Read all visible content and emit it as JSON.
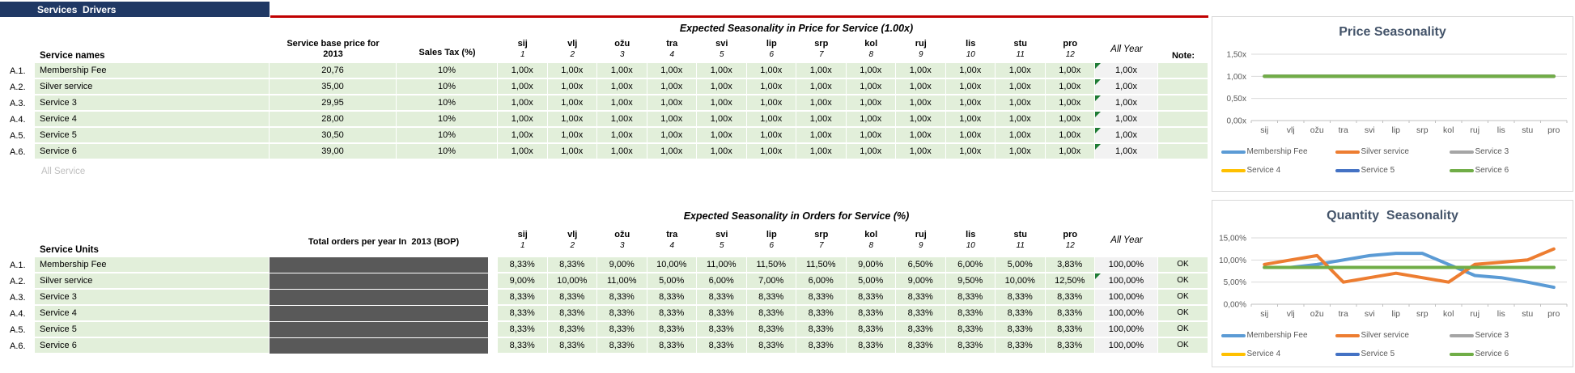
{
  "header": {
    "title": "Services  Drivers"
  },
  "price_table": {
    "title": "Expected Seasonality in Price for Service (1.00x)",
    "name_header": "Service names",
    "base_price_header": "Service base price for\n2013",
    "sales_tax_header": "Sales Tax (%)",
    "months": [
      "sij",
      "vlj",
      "ožu",
      "tra",
      "svi",
      "lip",
      "srp",
      "kol",
      "ruj",
      "lis",
      "stu",
      "pro"
    ],
    "month_numbers": [
      "1",
      "2",
      "3",
      "4",
      "5",
      "6",
      "7",
      "8",
      "9",
      "10",
      "11",
      "12"
    ],
    "all_year_header": "All Year",
    "note_header": "Note:",
    "footer_label": "All Service",
    "rows": [
      {
        "id": "A.1.",
        "name": "Membership Fee",
        "base_price": "20,76",
        "sales_tax": "10%",
        "monthly": [
          "1,00x",
          "1,00x",
          "1,00x",
          "1,00x",
          "1,00x",
          "1,00x",
          "1,00x",
          "1,00x",
          "1,00x",
          "1,00x",
          "1,00x",
          "1,00x"
        ],
        "all_year": "1,00x",
        "flag": true
      },
      {
        "id": "A.2.",
        "name": "Silver service",
        "base_price": "35,00",
        "sales_tax": "10%",
        "monthly": [
          "1,00x",
          "1,00x",
          "1,00x",
          "1,00x",
          "1,00x",
          "1,00x",
          "1,00x",
          "1,00x",
          "1,00x",
          "1,00x",
          "1,00x",
          "1,00x"
        ],
        "all_year": "1,00x",
        "flag": true
      },
      {
        "id": "A.3.",
        "name": "Service 3",
        "base_price": "29,95",
        "sales_tax": "10%",
        "monthly": [
          "1,00x",
          "1,00x",
          "1,00x",
          "1,00x",
          "1,00x",
          "1,00x",
          "1,00x",
          "1,00x",
          "1,00x",
          "1,00x",
          "1,00x",
          "1,00x"
        ],
        "all_year": "1,00x",
        "flag": true
      },
      {
        "id": "A.4.",
        "name": "Service 4",
        "base_price": "28,00",
        "sales_tax": "10%",
        "monthly": [
          "1,00x",
          "1,00x",
          "1,00x",
          "1,00x",
          "1,00x",
          "1,00x",
          "1,00x",
          "1,00x",
          "1,00x",
          "1,00x",
          "1,00x",
          "1,00x"
        ],
        "all_year": "1,00x",
        "flag": true
      },
      {
        "id": "A.5.",
        "name": "Service 5",
        "base_price": "30,50",
        "sales_tax": "10%",
        "monthly": [
          "1,00x",
          "1,00x",
          "1,00x",
          "1,00x",
          "1,00x",
          "1,00x",
          "1,00x",
          "1,00x",
          "1,00x",
          "1,00x",
          "1,00x",
          "1,00x"
        ],
        "all_year": "1,00x",
        "flag": true
      },
      {
        "id": "A.6.",
        "name": "Service 6",
        "base_price": "39,00",
        "sales_tax": "10%",
        "monthly": [
          "1,00x",
          "1,00x",
          "1,00x",
          "1,00x",
          "1,00x",
          "1,00x",
          "1,00x",
          "1,00x",
          "1,00x",
          "1,00x",
          "1,00x",
          "1,00x"
        ],
        "all_year": "1,00x",
        "flag": true
      }
    ]
  },
  "orders_table": {
    "title": "Expected Seasonality in Orders for Service (%)",
    "name_header": "Service Units",
    "total_orders_header": "Total orders per year In  2013 (BOP)",
    "months": [
      "sij",
      "vlj",
      "ožu",
      "tra",
      "svi",
      "lip",
      "srp",
      "kol",
      "ruj",
      "lis",
      "stu",
      "pro"
    ],
    "month_numbers": [
      "1",
      "2",
      "3",
      "4",
      "5",
      "6",
      "7",
      "8",
      "9",
      "10",
      "11",
      "12"
    ],
    "all_year_header": "All Year",
    "rows": [
      {
        "id": "A.1.",
        "name": "Membership Fee",
        "monthly": [
          "8,33%",
          "8,33%",
          "9,00%",
          "10,00%",
          "11,00%",
          "11,50%",
          "11,50%",
          "9,00%",
          "6,50%",
          "6,00%",
          "5,00%",
          "3,83%"
        ],
        "all_year": "100,00%",
        "note": "OK",
        "flag": false
      },
      {
        "id": "A.2.",
        "name": "Silver service",
        "monthly": [
          "9,00%",
          "10,00%",
          "11,00%",
          "5,00%",
          "6,00%",
          "7,00%",
          "6,00%",
          "5,00%",
          "9,00%",
          "9,50%",
          "10,00%",
          "12,50%"
        ],
        "all_year": "100,00%",
        "note": "OK",
        "flag": true
      },
      {
        "id": "A.3.",
        "name": "Service 3",
        "monthly": [
          "8,33%",
          "8,33%",
          "8,33%",
          "8,33%",
          "8,33%",
          "8,33%",
          "8,33%",
          "8,33%",
          "8,33%",
          "8,33%",
          "8,33%",
          "8,33%"
        ],
        "all_year": "100,00%",
        "note": "OK",
        "flag": false
      },
      {
        "id": "A.4.",
        "name": "Service 4",
        "monthly": [
          "8,33%",
          "8,33%",
          "8,33%",
          "8,33%",
          "8,33%",
          "8,33%",
          "8,33%",
          "8,33%",
          "8,33%",
          "8,33%",
          "8,33%",
          "8,33%"
        ],
        "all_year": "100,00%",
        "note": "OK",
        "flag": false
      },
      {
        "id": "A.5.",
        "name": "Service 5",
        "monthly": [
          "8,33%",
          "8,33%",
          "8,33%",
          "8,33%",
          "8,33%",
          "8,33%",
          "8,33%",
          "8,33%",
          "8,33%",
          "8,33%",
          "8,33%",
          "8,33%"
        ],
        "all_year": "100,00%",
        "note": "OK",
        "flag": false
      },
      {
        "id": "A.6.",
        "name": "Service 6",
        "monthly": [
          "8,33%",
          "8,33%",
          "8,33%",
          "8,33%",
          "8,33%",
          "8,33%",
          "8,33%",
          "8,33%",
          "8,33%",
          "8,33%",
          "8,33%",
          "8,33%"
        ],
        "all_year": "100,00%",
        "note": "OK",
        "flag": false
      }
    ]
  },
  "chart_data": [
    {
      "type": "line",
      "title": "Price Seasonality",
      "categories": [
        "sij",
        "vlj",
        "ožu",
        "tra",
        "svi",
        "lip",
        "srp",
        "kol",
        "ruj",
        "lis",
        "stu",
        "pro"
      ],
      "ylim": [
        0,
        1.5
      ],
      "ytick_values": [
        0,
        0.5,
        1,
        1.5
      ],
      "ytick_labels": [
        "0,00x",
        "0,50x",
        "1,00x",
        "1,50x"
      ],
      "grid": true,
      "legend_position": "bottom",
      "series": [
        {
          "name": "Membership Fee",
          "color": "#5B9BD5",
          "values": [
            1,
            1,
            1,
            1,
            1,
            1,
            1,
            1,
            1,
            1,
            1,
            1
          ]
        },
        {
          "name": "Silver service",
          "color": "#ED7D31",
          "values": [
            1,
            1,
            1,
            1,
            1,
            1,
            1,
            1,
            1,
            1,
            1,
            1
          ]
        },
        {
          "name": "Service 3",
          "color": "#A5A5A5",
          "values": [
            1,
            1,
            1,
            1,
            1,
            1,
            1,
            1,
            1,
            1,
            1,
            1
          ]
        },
        {
          "name": "Service 4",
          "color": "#FFC000",
          "values": [
            1,
            1,
            1,
            1,
            1,
            1,
            1,
            1,
            1,
            1,
            1,
            1
          ]
        },
        {
          "name": "Service 5",
          "color": "#4472C4",
          "values": [
            1,
            1,
            1,
            1,
            1,
            1,
            1,
            1,
            1,
            1,
            1,
            1
          ]
        },
        {
          "name": "Service 6",
          "color": "#70AD47",
          "values": [
            1,
            1,
            1,
            1,
            1,
            1,
            1,
            1,
            1,
            1,
            1,
            1
          ]
        }
      ]
    },
    {
      "type": "line",
      "title": "Quantity  Seasonality",
      "categories": [
        "sij",
        "vlj",
        "ožu",
        "tra",
        "svi",
        "lip",
        "srp",
        "kol",
        "ruj",
        "lis",
        "stu",
        "pro"
      ],
      "ylim": [
        0,
        15
      ],
      "ytick_values": [
        0,
        5,
        10,
        15
      ],
      "ytick_labels": [
        "0,00%",
        "5,00%",
        "10,00%",
        "15,00%"
      ],
      "grid": true,
      "legend_position": "bottom",
      "series": [
        {
          "name": "Membership Fee",
          "color": "#5B9BD5",
          "values": [
            8.33,
            8.33,
            9,
            10,
            11,
            11.5,
            11.5,
            9,
            6.5,
            6,
            5,
            3.83
          ]
        },
        {
          "name": "Silver service",
          "color": "#ED7D31",
          "values": [
            9,
            10,
            11,
            5,
            6,
            7,
            6,
            5,
            9,
            9.5,
            10,
            12.5
          ]
        },
        {
          "name": "Service 3",
          "color": "#A5A5A5",
          "values": [
            8.33,
            8.33,
            8.33,
            8.33,
            8.33,
            8.33,
            8.33,
            8.33,
            8.33,
            8.33,
            8.33,
            8.33
          ]
        },
        {
          "name": "Service 4",
          "color": "#FFC000",
          "values": [
            8.33,
            8.33,
            8.33,
            8.33,
            8.33,
            8.33,
            8.33,
            8.33,
            8.33,
            8.33,
            8.33,
            8.33
          ]
        },
        {
          "name": "Service 5",
          "color": "#4472C4",
          "values": [
            8.33,
            8.33,
            8.33,
            8.33,
            8.33,
            8.33,
            8.33,
            8.33,
            8.33,
            8.33,
            8.33,
            8.33
          ]
        },
        {
          "name": "Service 6",
          "color": "#70AD47",
          "values": [
            8.33,
            8.33,
            8.33,
            8.33,
            8.33,
            8.33,
            8.33,
            8.33,
            8.33,
            8.33,
            8.33,
            8.33
          ]
        }
      ]
    }
  ],
  "colors": {
    "header_bar": "#1F3864",
    "divider_red": "#C00000",
    "cell_green": "#E2EFDA",
    "cell_gray": "#F2F2F2",
    "hidden_bar": "#595959",
    "flag_triangle": "#1E7B34",
    "chart_title": "#44546A",
    "axis_text": "#595959",
    "gridline": "#D9D9D9"
  }
}
